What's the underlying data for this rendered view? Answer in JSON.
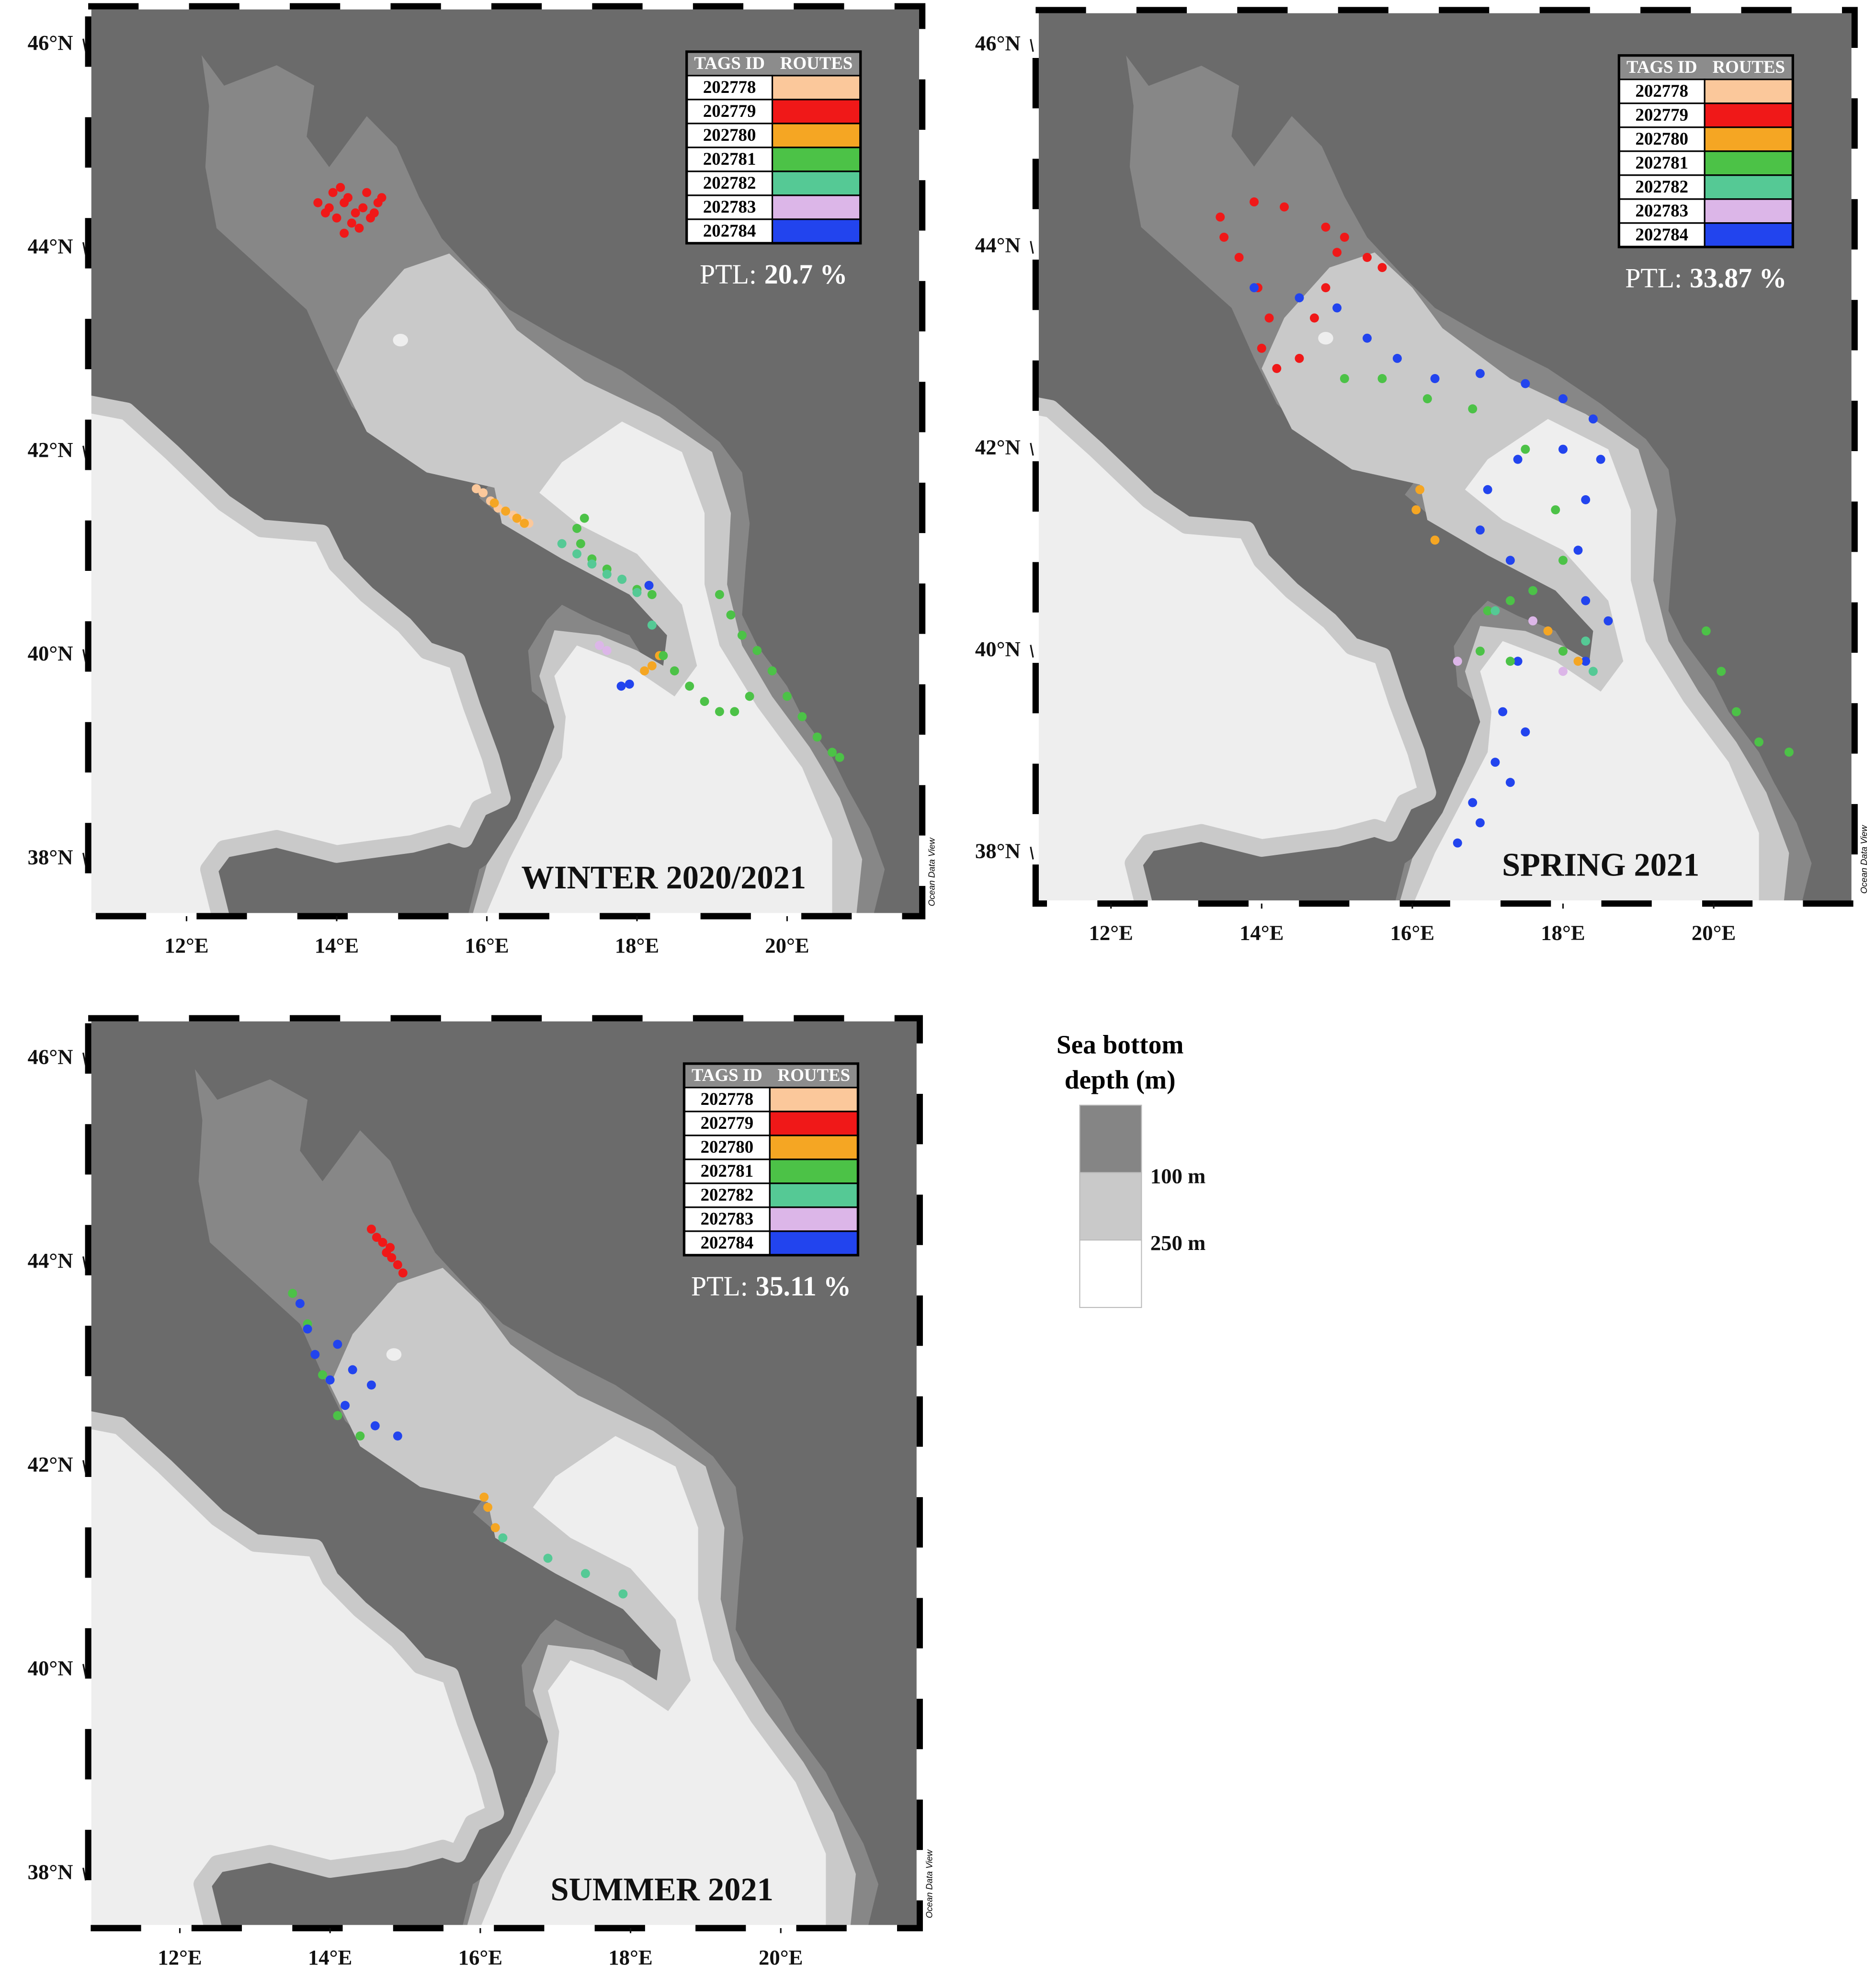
{
  "legend": {
    "header": [
      "TAGS ID",
      "ROUTES"
    ],
    "rows": [
      {
        "tag": "202778",
        "color": "#fbc89b"
      },
      {
        "tag": "202779",
        "color": "#f01818"
      },
      {
        "tag": "202780",
        "color": "#f5a623"
      },
      {
        "tag": "202781",
        "color": "#4cc247"
      },
      {
        "tag": "202782",
        "color": "#55c995"
      },
      {
        "tag": "202783",
        "color": "#dcb6e8"
      },
      {
        "tag": "202784",
        "color": "#2244ee"
      }
    ]
  },
  "credit": "Ocean Data View",
  "panels": [
    {
      "title": "WINTER 2020/2021",
      "ptl": {
        "label": "PTL:",
        "value": "20.7 %"
      },
      "xlim": [
        10.69,
        21.8
      ],
      "ylim": [
        37.44,
        46.38
      ],
      "xticks": [
        {
          "value": 12,
          "label": "12°E"
        },
        {
          "value": 14,
          "label": "14°E"
        },
        {
          "value": 16,
          "label": "16°E"
        },
        {
          "value": 18,
          "label": "18°E"
        },
        {
          "value": 20,
          "label": "20°E"
        }
      ],
      "yticks": [
        {
          "value": 38,
          "label": "38°N"
        },
        {
          "value": 40,
          "label": "40°N"
        },
        {
          "value": 42,
          "label": "42°N"
        },
        {
          "value": 44,
          "label": "44°N"
        },
        {
          "value": 46,
          "label": "46°N"
        }
      ],
      "tracks": [
        {
          "tag": "202779",
          "lon": [
            13.75,
            13.85,
            13.95,
            14.05,
            14.15,
            14.25,
            14.35,
            14.45,
            14.55,
            14.6,
            14.4,
            14.2,
            14.0,
            13.9,
            14.1,
            14.3,
            14.5,
            14.1
          ],
          "lat": [
            44.45,
            44.35,
            44.55,
            44.6,
            44.5,
            44.35,
            44.4,
            44.3,
            44.45,
            44.5,
            44.55,
            44.25,
            44.3,
            44.4,
            44.15,
            44.2,
            44.35,
            44.45
          ]
        },
        {
          "tag": "202778",
          "lon": [
            15.86,
            15.95,
            16.05,
            16.15,
            16.25,
            16.35,
            16.45,
            16.56
          ],
          "lat": [
            41.64,
            41.6,
            41.52,
            41.45,
            41.42,
            41.38,
            41.33,
            41.3
          ]
        },
        {
          "tag": "202780",
          "lon": [
            16.1,
            16.25,
            16.4,
            16.5,
            18.1,
            18.2,
            18.3
          ],
          "lat": [
            41.5,
            41.42,
            41.35,
            41.3,
            39.85,
            39.9,
            40.0
          ]
        },
        {
          "tag": "202781",
          "lon": [
            17.2,
            17.3,
            17.25,
            17.4,
            17.6,
            17.8,
            18.0,
            18.2,
            18.35,
            18.5,
            18.7,
            18.9,
            19.1,
            19.3,
            19.5,
            19.1,
            19.25,
            19.4,
            19.6,
            19.8,
            20.0,
            20.2,
            20.4,
            20.6,
            20.7
          ],
          "lat": [
            41.25,
            41.35,
            41.1,
            40.95,
            40.85,
            40.75,
            40.65,
            40.6,
            40.0,
            39.85,
            39.7,
            39.55,
            39.45,
            39.45,
            39.6,
            40.6,
            40.4,
            40.2,
            40.05,
            39.85,
            39.6,
            39.4,
            39.2,
            39.05,
            39.0
          ]
        },
        {
          "tag": "202782",
          "lon": [
            17.0,
            17.2,
            17.4,
            17.6,
            17.8,
            18.0,
            18.2
          ],
          "lat": [
            41.1,
            41.0,
            40.9,
            40.8,
            40.75,
            40.62,
            40.3
          ]
        },
        {
          "tag": "202783",
          "lon": [
            17.5,
            17.6
          ],
          "lat": [
            40.1,
            40.05
          ]
        },
        {
          "tag": "202784",
          "lon": [
            17.79,
            17.9,
            18.16
          ],
          "lat": [
            39.7,
            39.72,
            40.69
          ]
        }
      ]
    },
    {
      "title": "SPRING 2021",
      "ptl": {
        "label": "PTL:",
        "value": "33.87 %"
      },
      "xlim": [
        11.0,
        21.87
      ],
      "ylim": [
        37.5,
        46.35
      ],
      "xticks": [
        {
          "value": 12,
          "label": "12°E"
        },
        {
          "value": 14,
          "label": "14°E"
        },
        {
          "value": 16,
          "label": "16°E"
        },
        {
          "value": 18,
          "label": "18°E"
        },
        {
          "value": 20,
          "label": "20°E"
        }
      ],
      "yticks": [
        {
          "value": 38,
          "label": "38°N"
        },
        {
          "value": 40,
          "label": "40°N"
        },
        {
          "value": 42,
          "label": "42°N"
        },
        {
          "value": 44,
          "label": "44°N"
        },
        {
          "value": 46,
          "label": "46°N"
        }
      ],
      "tracks": [
        {
          "tag": "202779",
          "lon": [
            13.9,
            14.3,
            13.45,
            13.5,
            13.7,
            13.95,
            14.1,
            14.0,
            14.2,
            14.5,
            14.7,
            14.85,
            15.0,
            14.85,
            15.1,
            15.4,
            15.6
          ],
          "lat": [
            44.45,
            44.4,
            44.3,
            44.1,
            43.9,
            43.6,
            43.3,
            43.0,
            42.8,
            42.9,
            43.3,
            43.6,
            43.95,
            44.2,
            44.1,
            43.9,
            43.8
          ]
        },
        {
          "tag": "202784",
          "lon": [
            13.9,
            14.5,
            15.0,
            15.4,
            15.8,
            16.3,
            16.9,
            17.5,
            18.0,
            18.4,
            18.5,
            18.3,
            18.2,
            18.3,
            18.6,
            18.3,
            18.0,
            17.4,
            17.0,
            16.9,
            17.3,
            17.6,
            17.4,
            17.2,
            17.1,
            16.8,
            16.6,
            16.9,
            17.3,
            17.5
          ],
          "lat": [
            43.6,
            43.5,
            43.4,
            43.1,
            42.9,
            42.7,
            42.75,
            42.65,
            42.5,
            42.3,
            41.9,
            41.5,
            41.0,
            40.5,
            40.3,
            39.9,
            42.0,
            41.9,
            41.6,
            41.2,
            40.9,
            40.6,
            39.9,
            39.4,
            38.9,
            38.5,
            38.1,
            38.3,
            38.7,
            39.2
          ]
        },
        {
          "tag": "202781",
          "lon": [
            15.1,
            15.6,
            16.2,
            16.8,
            17.5,
            17.9,
            18.0,
            17.6,
            17.3,
            17.0,
            16.9,
            17.3,
            18.0,
            19.9,
            20.1,
            20.3,
            20.6,
            21.0
          ],
          "lat": [
            42.7,
            42.7,
            42.5,
            42.4,
            42.0,
            41.4,
            40.9,
            40.6,
            40.5,
            40.4,
            40.0,
            39.9,
            40.0,
            40.2,
            39.8,
            39.4,
            39.1,
            39.0
          ]
        },
        {
          "tag": "202780",
          "lon": [
            16.1,
            16.05,
            16.3,
            17.8,
            18.2
          ],
          "lat": [
            41.6,
            41.4,
            41.1,
            40.2,
            39.9
          ]
        },
        {
          "tag": "202783",
          "lon": [
            16.6,
            17.6,
            18.0
          ],
          "lat": [
            39.9,
            40.3,
            39.8
          ]
        },
        {
          "tag": "202782",
          "lon": [
            17.1,
            18.3,
            18.4
          ],
          "lat": [
            40.4,
            40.1,
            39.8
          ]
        }
      ]
    },
    {
      "title": "SUMMER 2021",
      "ptl": {
        "label": "PTL:",
        "value": "35.11 %"
      },
      "xlim": [
        10.78,
        21.85
      ],
      "ylim": [
        37.47,
        46.4
      ],
      "xticks": [
        {
          "value": 12,
          "label": "12°E"
        },
        {
          "value": 14,
          "label": "14°E"
        },
        {
          "value": 16,
          "label": "16°E"
        },
        {
          "value": 18,
          "label": "18°E"
        },
        {
          "value": 20,
          "label": "20°E"
        }
      ],
      "yticks": [
        {
          "value": 38,
          "label": "38°N"
        },
        {
          "value": 40,
          "label": "40°N"
        },
        {
          "value": 42,
          "label": "42°N"
        },
        {
          "value": 44,
          "label": "44°N"
        },
        {
          "value": 46,
          "label": "46°N"
        }
      ],
      "tracks": [
        {
          "tag": "202779",
          "lon": [
            14.55,
            14.62,
            14.7,
            14.75,
            14.82,
            14.9,
            14.97,
            14.8
          ],
          "lat": [
            44.33,
            44.25,
            44.2,
            44.1,
            44.05,
            43.98,
            43.9,
            44.15
          ]
        },
        {
          "tag": "202781",
          "lon": [
            13.5,
            13.7,
            13.9,
            14.1,
            14.4
          ],
          "lat": [
            43.7,
            43.4,
            42.9,
            42.5,
            42.3
          ]
        },
        {
          "tag": "202784",
          "lon": [
            13.6,
            13.7,
            13.8,
            14.0,
            14.2,
            14.6,
            14.9,
            14.55,
            14.3,
            14.1
          ],
          "lat": [
            43.6,
            43.35,
            43.1,
            42.85,
            42.6,
            42.4,
            42.3,
            42.8,
            42.95,
            43.2
          ]
        },
        {
          "tag": "202780",
          "lon": [
            16.05,
            16.1,
            16.2
          ],
          "lat": [
            41.7,
            41.6,
            41.4
          ]
        },
        {
          "tag": "202782",
          "lon": [
            16.3,
            16.9,
            17.4,
            17.9
          ],
          "lat": [
            41.3,
            41.1,
            40.95,
            40.75
          ]
        }
      ]
    }
  ],
  "depth_legend": {
    "title_lines": [
      "Sea bottom",
      "depth (m)"
    ],
    "labels": [
      "100 m",
      "250 m"
    ],
    "colors": [
      "#858585",
      "#c9c9c9",
      "#ffffff"
    ]
  }
}
